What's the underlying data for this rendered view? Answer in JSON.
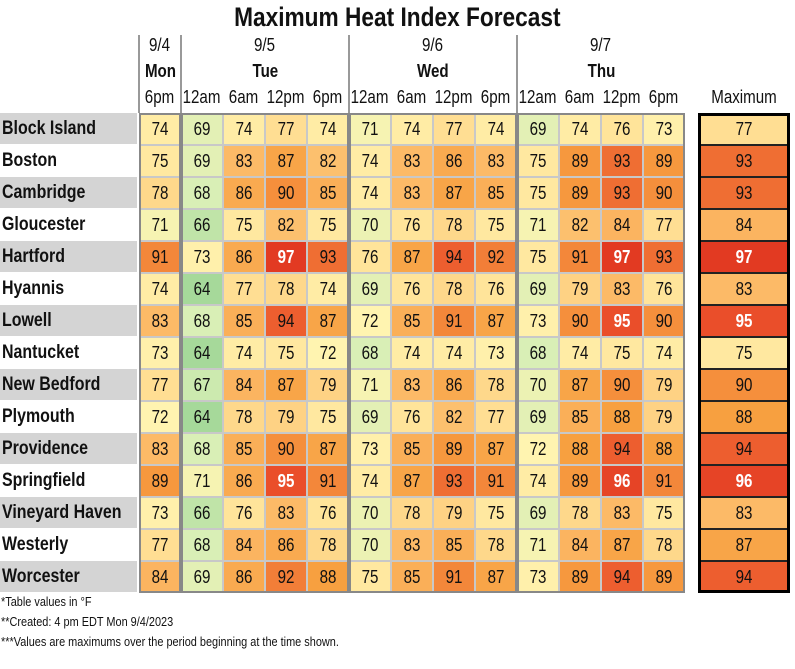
{
  "title": "Maximum Heat Index Forecast",
  "groups": [
    {
      "date": "9/4",
      "day": "Mon",
      "times": [
        "6pm"
      ]
    },
    {
      "date": "9/5",
      "day": "Tue",
      "times": [
        "12am",
        "6am",
        "12pm",
        "6pm"
      ]
    },
    {
      "date": "9/6",
      "day": "Wed",
      "times": [
        "12am",
        "6am",
        "12pm",
        "6pm"
      ]
    },
    {
      "date": "9/7",
      "day": "Thu",
      "times": [
        "12am",
        "6am",
        "12pm",
        "6pm"
      ]
    }
  ],
  "maximum_header": "Maximum",
  "rows": [
    {
      "city": "Block Island",
      "values": [
        74,
        69,
        74,
        77,
        74,
        71,
        74,
        77,
        74,
        69,
        74,
        76,
        73
      ],
      "maximum": 77
    },
    {
      "city": "Boston",
      "values": [
        75,
        69,
        83,
        87,
        82,
        74,
        83,
        86,
        83,
        75,
        89,
        93,
        89
      ],
      "maximum": 93
    },
    {
      "city": "Cambridge",
      "values": [
        78,
        68,
        86,
        90,
        85,
        74,
        83,
        87,
        85,
        75,
        89,
        93,
        90
      ],
      "maximum": 93
    },
    {
      "city": "Gloucester",
      "values": [
        71,
        66,
        75,
        82,
        75,
        70,
        76,
        78,
        75,
        71,
        82,
        84,
        77
      ],
      "maximum": 84
    },
    {
      "city": "Hartford",
      "values": [
        91,
        73,
        86,
        97,
        93,
        76,
        87,
        94,
        92,
        75,
        91,
        97,
        93
      ],
      "maximum": 97
    },
    {
      "city": "Hyannis",
      "values": [
        74,
        64,
        77,
        78,
        74,
        69,
        76,
        78,
        76,
        69,
        79,
        83,
        76
      ],
      "maximum": 83
    },
    {
      "city": "Lowell",
      "values": [
        83,
        68,
        85,
        94,
        87,
        72,
        85,
        91,
        87,
        73,
        90,
        95,
        90
      ],
      "maximum": 95
    },
    {
      "city": "Nantucket",
      "values": [
        73,
        64,
        74,
        75,
        72,
        68,
        74,
        74,
        73,
        68,
        74,
        75,
        74
      ],
      "maximum": 75
    },
    {
      "city": "New Bedford",
      "values": [
        77,
        67,
        84,
        87,
        79,
        71,
        83,
        86,
        78,
        70,
        87,
        90,
        79
      ],
      "maximum": 90
    },
    {
      "city": "Plymouth",
      "values": [
        72,
        64,
        78,
        79,
        75,
        69,
        76,
        82,
        77,
        69,
        85,
        88,
        79
      ],
      "maximum": 88
    },
    {
      "city": "Providence",
      "values": [
        83,
        68,
        85,
        90,
        87,
        73,
        85,
        89,
        87,
        72,
        88,
        94,
        88
      ],
      "maximum": 94
    },
    {
      "city": "Springfield",
      "values": [
        89,
        71,
        86,
        95,
        91,
        74,
        87,
        93,
        91,
        74,
        89,
        96,
        91
      ],
      "maximum": 96
    },
    {
      "city": "Vineyard Haven",
      "values": [
        73,
        66,
        76,
        83,
        76,
        70,
        78,
        79,
        75,
        69,
        78,
        83,
        75
      ],
      "maximum": 83
    },
    {
      "city": "Westerly",
      "values": [
        77,
        68,
        84,
        86,
        78,
        70,
        83,
        85,
        78,
        71,
        84,
        87,
        78
      ],
      "maximum": 87
    },
    {
      "city": "Worcester",
      "values": [
        84,
        69,
        86,
        92,
        88,
        75,
        85,
        91,
        87,
        73,
        89,
        94,
        89
      ],
      "maximum": 94
    }
  ],
  "footnotes": [
    "*Table values in °F",
    "**Created: 4 pm EDT Mon 9/4/2023",
    "***Values are maximums over the period beginning at the time shown."
  ]
}
